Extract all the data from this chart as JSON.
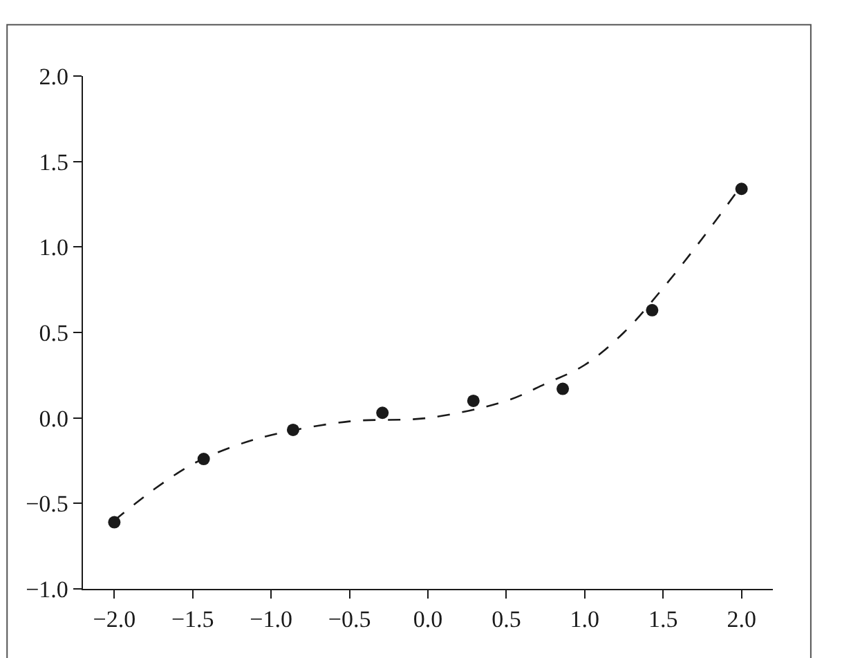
{
  "chart_data": {
    "type": "scatter",
    "x": [
      -2.0,
      -1.43,
      -0.86,
      -0.29,
      0.29,
      0.86,
      1.43,
      2.0
    ],
    "series": [
      {
        "color": "#1a1a1a",
        "marker": "circle",
        "values": [
          -0.61,
          -0.24,
          -0.07,
          0.03,
          0.1,
          0.17,
          0.63,
          1.34
        ]
      },
      {
        "type": "line",
        "color": "#1a1a1a",
        "marker": "none",
        "line_style": "dashed",
        "x": [
          -2.0,
          -1.75,
          -1.5,
          -1.25,
          -1.0,
          -0.5,
          0.0,
          0.5,
          0.75,
          1.0,
          1.25,
          1.5,
          1.75,
          2.0
        ],
        "values": [
          -0.6,
          -0.42,
          -0.27,
          -0.17,
          -0.1,
          -0.02,
          0.0,
          0.1,
          0.2,
          0.31,
          0.5,
          0.76,
          1.05,
          1.36
        ]
      }
    ],
    "xlim": [
      -2.2,
      2.2
    ],
    "ylim": [
      -1.0,
      2.0
    ],
    "xticks": [
      {
        "value": -2.0,
        "label": "−2.0"
      },
      {
        "value": -1.5,
        "label": "−1.5"
      },
      {
        "value": -1.0,
        "label": "−1.0"
      },
      {
        "value": -0.5,
        "label": "−0.5"
      },
      {
        "value": 0.0,
        "label": "0.0"
      },
      {
        "value": 0.5,
        "label": "0.5"
      },
      {
        "value": 1.0,
        "label": "1.0"
      },
      {
        "value": 1.5,
        "label": "1.5"
      },
      {
        "value": 2.0,
        "label": "2.0"
      }
    ],
    "yticks": [
      {
        "value": -1.0,
        "label": "−1.0"
      },
      {
        "value": -0.5,
        "label": "−0.5"
      },
      {
        "value": 0.0,
        "label": "0.0"
      },
      {
        "value": 0.5,
        "label": "0.5"
      },
      {
        "value": 1.0,
        "label": "1.0"
      },
      {
        "value": 1.5,
        "label": "1.5"
      },
      {
        "value": 2.0,
        "label": "2.0"
      }
    ]
  }
}
